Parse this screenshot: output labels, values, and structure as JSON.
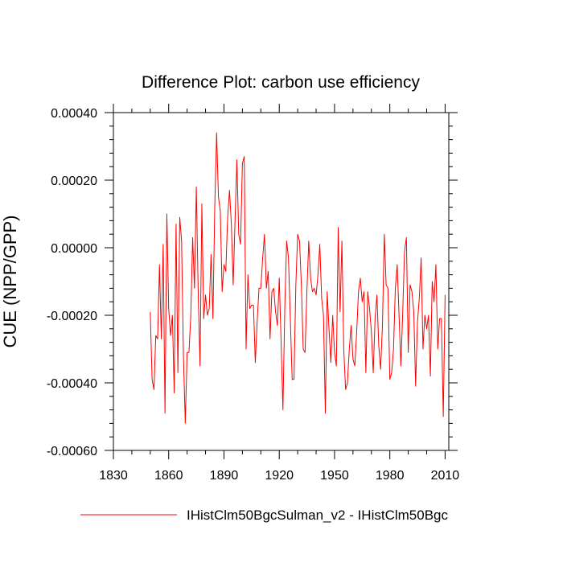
{
  "chart_data": {
    "type": "line",
    "title": "Difference Plot: carbon use efficiency",
    "xlabel": "",
    "ylabel": "CUE  (NPP/GPP)",
    "xlim": [
      1830,
      2012
    ],
    "ylim": [
      -0.0006,
      0.0004
    ],
    "xticks": [
      1830,
      1860,
      1890,
      1920,
      1950,
      1980,
      2010
    ],
    "xtick_labels": [
      "1830",
      "1860",
      "1890",
      "1920",
      "1950",
      "1980",
      "2010"
    ],
    "yticks": [
      -0.0006,
      -0.0004,
      -0.0002,
      0.0,
      0.0002,
      0.0004
    ],
    "ytick_labels": [
      "-0.00060",
      "-0.00040",
      "-0.00020",
      "0.00000",
      "0.00020",
      "0.00040"
    ],
    "grid": false,
    "legend_position": "bottom",
    "line_color": "#ff0000",
    "series": [
      {
        "name": "IHistClm50BgcSulman_v2 - IHistClm50Bgc",
        "x": [
          1850,
          1851,
          1852,
          1853,
          1854,
          1855,
          1856,
          1857,
          1858,
          1859,
          1860,
          1861,
          1862,
          1863,
          1864,
          1865,
          1866,
          1867,
          1868,
          1869,
          1870,
          1871,
          1872,
          1873,
          1874,
          1875,
          1876,
          1877,
          1878,
          1879,
          1880,
          1881,
          1882,
          1883,
          1884,
          1885,
          1886,
          1887,
          1888,
          1889,
          1890,
          1891,
          1892,
          1893,
          1894,
          1895,
          1896,
          1897,
          1898,
          1899,
          1900,
          1901,
          1902,
          1903,
          1904,
          1905,
          1906,
          1907,
          1908,
          1909,
          1910,
          1911,
          1912,
          1913,
          1914,
          1915,
          1916,
          1917,
          1918,
          1919,
          1920,
          1921,
          1922,
          1923,
          1924,
          1925,
          1926,
          1927,
          1928,
          1929,
          1930,
          1931,
          1932,
          1933,
          1934,
          1935,
          1936,
          1937,
          1938,
          1939,
          1940,
          1941,
          1942,
          1943,
          1944,
          1945,
          1946,
          1947,
          1948,
          1949,
          1950,
          1951,
          1952,
          1953,
          1954,
          1955,
          1956,
          1957,
          1958,
          1959,
          1960,
          1961,
          1962,
          1963,
          1964,
          1965,
          1966,
          1967,
          1968,
          1969,
          1970,
          1971,
          1972,
          1973,
          1974,
          1975,
          1976,
          1977,
          1978,
          1979,
          1980,
          1981,
          1982,
          1983,
          1984,
          1985,
          1986,
          1987,
          1988,
          1989,
          1990,
          1991,
          1992,
          1993,
          1994,
          1995,
          1996,
          1997,
          1998,
          1999,
          2000,
          2001,
          2002,
          2003,
          2004,
          2005,
          2006,
          2007,
          2008,
          2009,
          2010
        ],
        "values": [
          -0.00019,
          -0.00039,
          -0.00042,
          -0.00026,
          -0.00027,
          -5e-05,
          -0.00027,
          1e-05,
          -0.00049,
          0.0001,
          -0.00018,
          -0.00026,
          -0.0002,
          -0.00043,
          7e-05,
          -0.00037,
          9e-05,
          2e-05,
          -0.00032,
          -0.00052,
          -0.00031,
          -0.00031,
          -0.0002,
          3e-05,
          -0.00012,
          0.00018,
          -0.00013,
          -0.00035,
          0.00013,
          -0.00021,
          -0.00014,
          -0.0002,
          -0.00018,
          -2e-05,
          -0.00021,
          0.00012,
          0.00034,
          0.00015,
          0.00011,
          -0.00013,
          -5e-05,
          -7e-05,
          9e-05,
          0.00017,
          7e-05,
          -0.00011,
          8e-05,
          0.00026,
          4e-05,
          1e-05,
          0.00025,
          0.00027,
          -0.0003,
          -8e-05,
          -0.00018,
          -0.00017,
          -0.00017,
          -0.00034,
          -0.00022,
          -0.00012,
          -0.00012,
          -3e-05,
          4e-05,
          -0.00012,
          -7e-05,
          -0.00027,
          -0.00013,
          -0.00012,
          -0.00019,
          -0.00023,
          -9e-05,
          -0.00028,
          -0.00048,
          -0.00018,
          2e-05,
          -3e-05,
          -0.00021,
          -0.00039,
          -0.00039,
          -0.00011,
          4e-05,
          2e-05,
          -0.00011,
          -0.0003,
          -0.00031,
          -0.00013,
          2e-05,
          -9e-05,
          -0.00013,
          -0.00012,
          -0.00014,
          -8e-05,
          1e-05,
          -0.00015,
          -0.0002,
          -0.00049,
          -0.00013,
          -0.00024,
          -0.00034,
          -0.0002,
          -0.00031,
          -0.00035,
          6e-05,
          -0.00019,
          2e-05,
          -0.0003,
          -0.00042,
          -0.0004,
          -0.0003,
          -0.00023,
          -0.00033,
          -0.00035,
          -0.00025,
          -0.00013,
          -9e-05,
          -0.00016,
          -0.00013,
          -0.00037,
          -0.00013,
          -0.00018,
          -0.00025,
          -0.00037,
          -0.00021,
          -0.00014,
          -0.00029,
          -0.00036,
          -0.00023,
          4e-05,
          -0.00011,
          -0.00012,
          -0.00039,
          -0.00037,
          -0.0003,
          -0.00012,
          -5e-05,
          -0.0002,
          -0.00035,
          -0.00019,
          -1e-05,
          3e-05,
          -0.00031,
          -0.00011,
          -0.00013,
          -0.00019,
          -0.00041,
          -0.00022,
          -0.00015,
          -3e-05,
          -0.0003,
          -0.0002,
          -0.00024,
          -0.0002,
          -0.00038,
          -0.0001,
          -0.00016,
          -5e-05,
          -0.0003,
          -0.00021,
          -0.00021,
          -0.0005,
          -0.00014
        ]
      }
    ]
  }
}
